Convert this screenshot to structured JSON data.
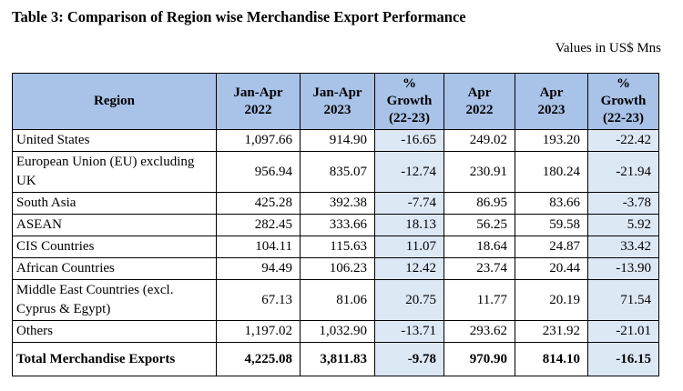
{
  "title": "Table 3: Comparison of Region wise Merchandise Export Performance",
  "units": "Values in US$ Mns",
  "headers": {
    "region": "Region",
    "c1a": "Jan-Apr",
    "c1b": "2022",
    "c2a": "Jan-Apr",
    "c2b": "2023",
    "c3a": "%",
    "c3b": "Growth",
    "c3c": "(22-23)",
    "c4a": "Apr",
    "c4b": "2022",
    "c5a": "Apr",
    "c5b": "2023",
    "c6a": "%",
    "c6b": "Growth",
    "c6c": "(22-23)"
  },
  "rows": [
    {
      "region": "United States",
      "ja22": "1,097.66",
      "ja23": "914.90",
      "g1": "-16.65",
      "a22": "249.02",
      "a23": "193.20",
      "g2": "-22.42"
    },
    {
      "region_l1": "European Union (EU) excluding",
      "region_l2": "UK",
      "ja22": "956.94",
      "ja23": "835.07",
      "g1": "-12.74",
      "a22": "230.91",
      "a23": "180.24",
      "g2": "-21.94"
    },
    {
      "region": "South Asia",
      "ja22": "425.28",
      "ja23": "392.38",
      "g1": "-7.74",
      "a22": "86.95",
      "a23": "83.66",
      "g2": "-3.78"
    },
    {
      "region": "ASEAN",
      "ja22": "282.45",
      "ja23": "333.66",
      "g1": "18.13",
      "a22": "56.25",
      "a23": "59.58",
      "g2": "5.92"
    },
    {
      "region": "CIS Countries",
      "ja22": "104.11",
      "ja23": "115.63",
      "g1": "11.07",
      "a22": "18.64",
      "a23": "24.87",
      "g2": "33.42"
    },
    {
      "region": "African Countries",
      "ja22": "94.49",
      "ja23": "106.23",
      "g1": "12.42",
      "a22": "23.74",
      "a23": "20.44",
      "g2": "-13.90"
    },
    {
      "region_l1": "Middle East Countries (excl.",
      "region_l2": "Cyprus & Egypt)",
      "ja22": "67.13",
      "ja23": "81.06",
      "g1": "20.75",
      "a22": "11.77",
      "a23": "20.19",
      "g2": "71.54"
    },
    {
      "region": "Others",
      "ja22": "1,197.02",
      "ja23": "1,032.90",
      "g1": "-13.71",
      "a22": "293.62",
      "a23": "231.92",
      "g2": "-21.01"
    }
  ],
  "total": {
    "region": "Total Merchandise Exports",
    "ja22": "4,225.08",
    "ja23": "3,811.83",
    "g1": "-9.78",
    "a22": "970.90",
    "a23": "814.10",
    "g2": "-16.15"
  }
}
